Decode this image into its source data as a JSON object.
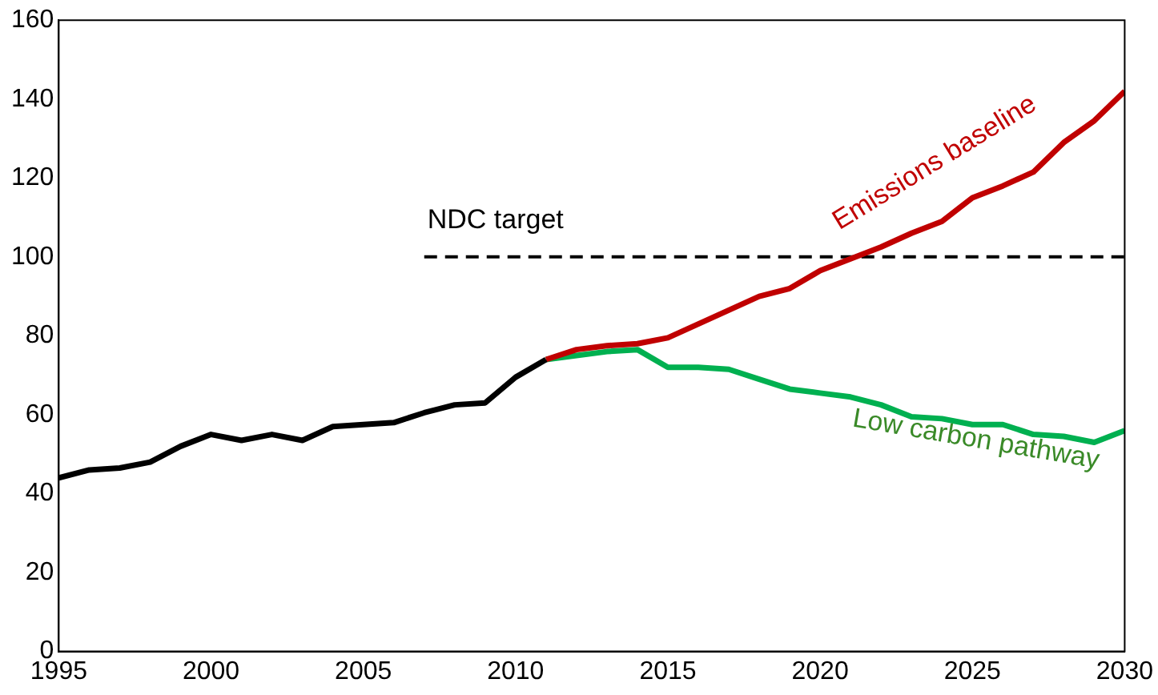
{
  "chart_data": {
    "type": "line",
    "xlim": [
      1995,
      2030
    ],
    "xticks": [
      1995,
      2000,
      2005,
      2010,
      2015,
      2020,
      2025,
      2030
    ],
    "ylim": [
      0,
      160
    ],
    "yticks": [
      0,
      20,
      40,
      60,
      80,
      100,
      120,
      140,
      160
    ],
    "grid": false,
    "legend": false,
    "marker": "none",
    "series": [
      {
        "color": "#000000",
        "x": [
          1995,
          1996,
          1997,
          1998,
          1999,
          2000,
          2001,
          2002,
          2003,
          2004,
          2005,
          2006,
          2007,
          2008,
          2009,
          2010,
          2011
        ],
        "values": [
          44,
          46,
          46.5,
          48,
          52,
          55,
          53.5,
          55,
          53.5,
          57,
          57.5,
          58,
          60.5,
          62.5,
          63,
          69.5,
          74
        ]
      },
      {
        "name": "Emissions baseline",
        "color": "#c00000",
        "x": [
          2011,
          2012,
          2013,
          2014,
          2015,
          2016,
          2017,
          2018,
          2019,
          2020,
          2021,
          2022,
          2023,
          2024,
          2025,
          2026,
          2027,
          2028,
          2029,
          2030
        ],
        "values": [
          74,
          76.5,
          77.5,
          78,
          79.5,
          83,
          86.5,
          90,
          92,
          96.5,
          99.5,
          102.5,
          106,
          109,
          115,
          118,
          121.5,
          129,
          134.5,
          142
        ]
      },
      {
        "name": "Low carbon pathway",
        "color": "#00b050",
        "x": [
          2011,
          2012,
          2013,
          2014,
          2015,
          2016,
          2017,
          2018,
          2019,
          2020,
          2021,
          2022,
          2023,
          2024,
          2025,
          2026,
          2027,
          2028,
          2029,
          2030
        ],
        "values": [
          74,
          75,
          76,
          76.5,
          72,
          72,
          71.5,
          69,
          66.5,
          65.5,
          64.5,
          62.5,
          59.5,
          59,
          57.5,
          57.5,
          55,
          54.5,
          53,
          56
        ]
      },
      {
        "name": "NDC target",
        "color": "#000000",
        "line_style": "dashed",
        "x": [
          2007,
          2030
        ],
        "values": [
          100,
          100
        ]
      }
    ]
  }
}
